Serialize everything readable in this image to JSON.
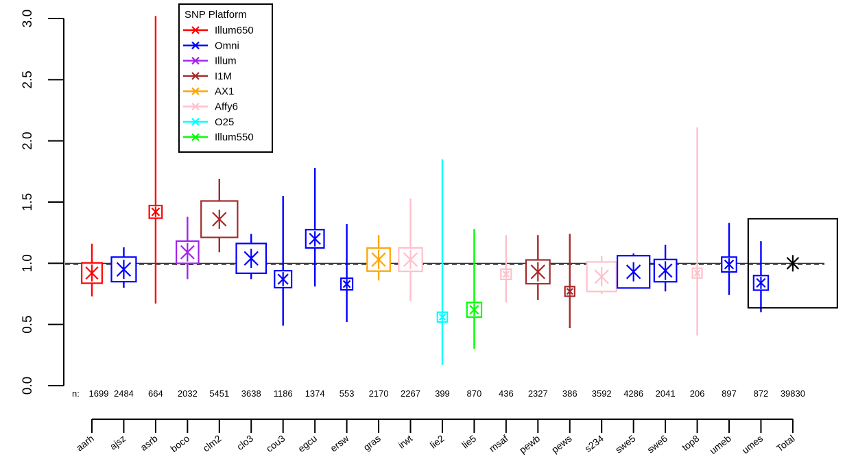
{
  "chart_data": {
    "type": "scatter",
    "subtype": "forest-plot",
    "title": "",
    "xlabel": "",
    "ylabel": "",
    "ylim": [
      0,
      3
    ],
    "yticks": [
      "0.0",
      "0.5",
      "1.0",
      "1.5",
      "2.0",
      "2.5",
      "3.0"
    ],
    "reference_line": 1.0,
    "n_prefix": "n:",
    "legend": {
      "title": "SNP Platform",
      "position": "top-left",
      "entries": [
        {
          "name": "Illum650",
          "color": "#ff0000"
        },
        {
          "name": "Omni",
          "color": "#0000ff"
        },
        {
          "name": "Illum",
          "color": "#a020f0"
        },
        {
          "name": "I1M",
          "color": "#a52a2a"
        },
        {
          "name": "AX1",
          "color": "#ffa500"
        },
        {
          "name": "Affy6",
          "color": "#ffc0cb"
        },
        {
          "name": "O25",
          "color": "#00ffff"
        },
        {
          "name": "Illum550",
          "color": "#00ff00"
        }
      ]
    },
    "studies": [
      {
        "label": "aarh",
        "n": "1699",
        "platform": "Illum650",
        "est": 0.92,
        "lo": 0.73,
        "hi": 1.16
      },
      {
        "label": "ajsz",
        "n": "2484",
        "platform": "Omni",
        "est": 0.95,
        "lo": 0.8,
        "hi": 1.13
      },
      {
        "label": "asrb",
        "n": "664",
        "platform": "Illum650",
        "est": 1.42,
        "lo": 0.67,
        "hi": 3.02
      },
      {
        "label": "boco",
        "n": "2032",
        "platform": "Illum",
        "est": 1.09,
        "lo": 0.87,
        "hi": 1.38
      },
      {
        "label": "clm2",
        "n": "5451",
        "platform": "I1M",
        "est": 1.36,
        "lo": 1.09,
        "hi": 1.69
      },
      {
        "label": "clo3",
        "n": "3638",
        "platform": "Omni",
        "est": 1.04,
        "lo": 0.87,
        "hi": 1.24
      },
      {
        "label": "cou3",
        "n": "1186",
        "platform": "Omni",
        "est": 0.87,
        "lo": 0.49,
        "hi": 1.55
      },
      {
        "label": "egcu",
        "n": "1374",
        "platform": "Omni",
        "est": 1.2,
        "lo": 0.81,
        "hi": 1.78
      },
      {
        "label": "ersw",
        "n": "553",
        "platform": "Omni",
        "est": 0.83,
        "lo": 0.52,
        "hi": 1.32
      },
      {
        "label": "gras",
        "n": "2170",
        "platform": "AX1",
        "est": 1.03,
        "lo": 0.86,
        "hi": 1.23
      },
      {
        "label": "irwt",
        "n": "2267",
        "platform": "Affy6",
        "est": 1.03,
        "lo": 0.69,
        "hi": 1.53
      },
      {
        "label": "lie2",
        "n": "399",
        "platform": "O25",
        "est": 0.56,
        "lo": 0.17,
        "hi": 1.85
      },
      {
        "label": "lie5",
        "n": "870",
        "platform": "Illum550",
        "est": 0.62,
        "lo": 0.3,
        "hi": 1.28
      },
      {
        "label": "msaf",
        "n": "436",
        "platform": "Affy6",
        "est": 0.91,
        "lo": 0.68,
        "hi": 1.23
      },
      {
        "label": "pewb",
        "n": "2327",
        "platform": "I1M",
        "est": 0.93,
        "lo": 0.7,
        "hi": 1.23
      },
      {
        "label": "pews",
        "n": "386",
        "platform": "I1M",
        "est": 0.77,
        "lo": 0.47,
        "hi": 1.24
      },
      {
        "label": "s234",
        "n": "3592",
        "platform": "Affy6",
        "est": 0.89,
        "lo": 0.75,
        "hi": 1.06
      },
      {
        "label": "swe5",
        "n": "4286",
        "platform": "Omni",
        "est": 0.93,
        "lo": 0.8,
        "hi": 1.08
      },
      {
        "label": "swe6",
        "n": "2041",
        "platform": "Omni",
        "est": 0.94,
        "lo": 0.77,
        "hi": 1.15
      },
      {
        "label": "top8",
        "n": "206",
        "platform": "Affy6",
        "est": 0.92,
        "lo": 0.41,
        "hi": 2.11
      },
      {
        "label": "umeb",
        "n": "897",
        "platform": "Omni",
        "est": 0.99,
        "lo": 0.74,
        "hi": 1.33
      },
      {
        "label": "umes",
        "n": "872",
        "platform": "Omni",
        "est": 0.84,
        "lo": 0.6,
        "hi": 1.18
      },
      {
        "label": "Total",
        "n": "39830",
        "platform": "",
        "est": 1.0,
        "lo": 1.0,
        "hi": 1.0
      }
    ]
  }
}
